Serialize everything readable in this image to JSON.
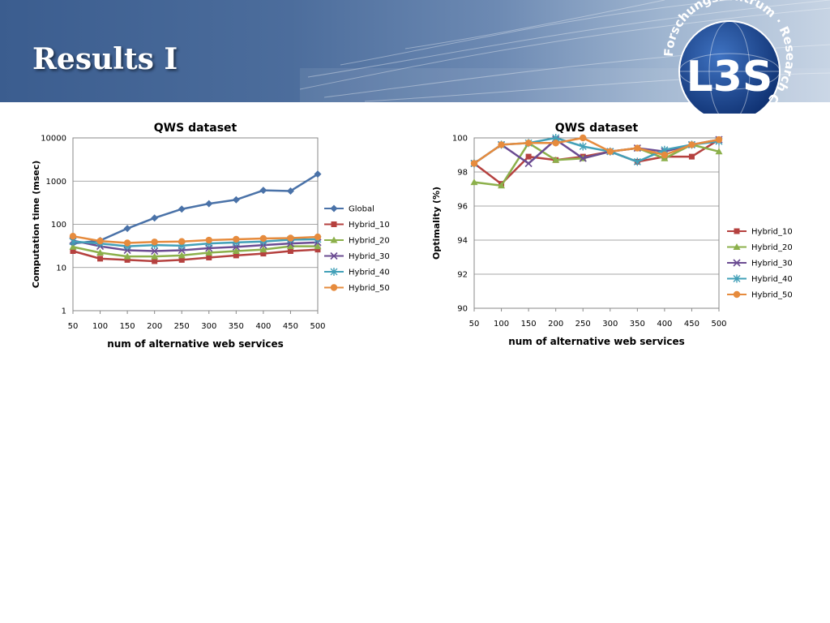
{
  "slide": {
    "title": "Results I"
  },
  "logo": {
    "brand": "L3S",
    "ring_text": "Forschungszentrum · Research Center"
  },
  "chart_data": [
    {
      "type": "line",
      "title": "QWS dataset",
      "xlabel": "num of alternative web services",
      "ylabel": "Computation time (msec)",
      "x": [
        50,
        100,
        150,
        200,
        250,
        300,
        350,
        400,
        450,
        500
      ],
      "y_scale": "log",
      "ylim": [
        1,
        10000
      ],
      "y_ticks": [
        "1",
        "10",
        "100",
        "1000",
        "10000"
      ],
      "grid": "horizontal",
      "legend": "right",
      "series": [
        {
          "name": "Global",
          "color": "#4a72a8",
          "marker": "diamond",
          "values": [
            36,
            42,
            80,
            140,
            225,
            300,
            370,
            610,
            590,
            1450
          ]
        },
        {
          "name": "Hybrid_10",
          "color": "#b5413f",
          "marker": "square",
          "values": [
            24,
            16,
            15,
            14,
            15,
            17,
            19,
            21,
            24,
            26
          ]
        },
        {
          "name": "Hybrid_20",
          "color": "#8cb04b",
          "marker": "triangle",
          "values": [
            30,
            22,
            18,
            18,
            19,
            22,
            24,
            26,
            31,
            31
          ]
        },
        {
          "name": "Hybrid_30",
          "color": "#6b4c92",
          "marker": "x",
          "values": [
            42,
            31,
            25,
            24,
            25,
            28,
            30,
            33,
            36,
            38
          ]
        },
        {
          "name": "Hybrid_40",
          "color": "#42a0b8",
          "marker": "star",
          "values": [
            40,
            36,
            31,
            33,
            32,
            36,
            38,
            40,
            44,
            45
          ]
        },
        {
          "name": "Hybrid_50",
          "color": "#e68b3d",
          "marker": "circle",
          "values": [
            53,
            41,
            37,
            39,
            40,
            43,
            45,
            47,
            48,
            51
          ]
        }
      ]
    },
    {
      "type": "line",
      "title": "QWS dataset",
      "xlabel": "num of alternative web services",
      "ylabel": "Optimality (%)",
      "x": [
        50,
        100,
        150,
        200,
        250,
        300,
        350,
        400,
        450,
        500
      ],
      "y_scale": "linear",
      "ylim": [
        90,
        100
      ],
      "y_ticks": [
        "90",
        "92",
        "94",
        "96",
        "98",
        "100"
      ],
      "grid": "horizontal",
      "legend": "right",
      "series": [
        {
          "name": "Hybrid_10",
          "color": "#b5413f",
          "marker": "square",
          "values": [
            98.5,
            97.3,
            98.9,
            98.7,
            98.9,
            99.2,
            98.6,
            98.9,
            98.9,
            99.9
          ]
        },
        {
          "name": "Hybrid_20",
          "color": "#8cb04b",
          "marker": "triangle",
          "values": [
            97.4,
            97.2,
            99.7,
            98.7,
            98.8,
            99.2,
            99.4,
            98.8,
            99.6,
            99.2
          ]
        },
        {
          "name": "Hybrid_30",
          "color": "#6b4c92",
          "marker": "x",
          "values": [
            98.5,
            99.6,
            98.5,
            99.9,
            98.8,
            99.2,
            99.4,
            99.2,
            99.6,
            99.9
          ]
        },
        {
          "name": "Hybrid_40",
          "color": "#42a0b8",
          "marker": "star",
          "values": [
            98.5,
            99.6,
            99.7,
            100.0,
            99.5,
            99.2,
            98.6,
            99.3,
            99.6,
            99.8
          ]
        },
        {
          "name": "Hybrid_50",
          "color": "#e68b3d",
          "marker": "circle",
          "values": [
            98.5,
            99.6,
            99.7,
            99.7,
            100.0,
            99.2,
            99.4,
            99.0,
            99.6,
            99.9
          ]
        }
      ]
    }
  ]
}
